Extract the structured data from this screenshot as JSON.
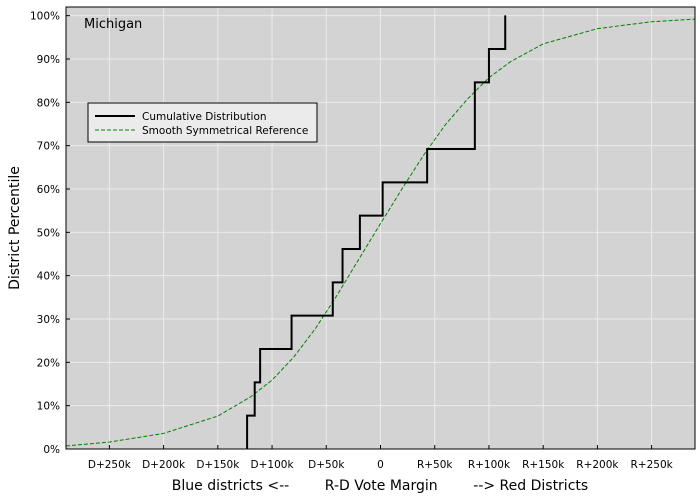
{
  "chart_data": {
    "type": "line",
    "title": "Michigan",
    "xlabel": "Blue districts <--        R-D Vote Margin        --> Red Districts",
    "ylabel": "District Percentile",
    "xlim": [
      -290000,
      290000
    ],
    "ylim": [
      0,
      1.02
    ],
    "grid": true,
    "legend_position": "upper-left",
    "x_ticks": [
      {
        "value": -250000,
        "label": "D+250k"
      },
      {
        "value": -200000,
        "label": "D+200k"
      },
      {
        "value": -150000,
        "label": "D+150k"
      },
      {
        "value": -100000,
        "label": "D+100k"
      },
      {
        "value": -50000,
        "label": "D+50k"
      },
      {
        "value": 0,
        "label": "0"
      },
      {
        "value": 50000,
        "label": "R+50k"
      },
      {
        "value": 100000,
        "label": "R+100k"
      },
      {
        "value": 150000,
        "label": "R+150k"
      },
      {
        "value": 200000,
        "label": "R+200k"
      },
      {
        "value": 250000,
        "label": "R+250k"
      }
    ],
    "y_ticks": [
      {
        "value": 0.0,
        "label": "0%"
      },
      {
        "value": 0.1,
        "label": "10%"
      },
      {
        "value": 0.2,
        "label": "20%"
      },
      {
        "value": 0.3,
        "label": "30%"
      },
      {
        "value": 0.4,
        "label": "40%"
      },
      {
        "value": 0.5,
        "label": "50%"
      },
      {
        "value": 0.6,
        "label": "60%"
      },
      {
        "value": 0.7,
        "label": "70%"
      },
      {
        "value": 0.8,
        "label": "80%"
      },
      {
        "value": 0.9,
        "label": "90%"
      },
      {
        "value": 1.0,
        "label": "100%"
      }
    ],
    "series": [
      {
        "name": "Cumulative Distribution",
        "style": "step",
        "color": "#000000",
        "x": [
          -123000,
          -116000,
          -111000,
          -82000,
          -44000,
          -35000,
          -19000,
          2000,
          43000,
          87000,
          100000,
          115000
        ],
        "y": [
          0.0769,
          0.1538,
          0.2308,
          0.3077,
          0.3846,
          0.4615,
          0.5385,
          0.6154,
          0.6923,
          0.8462,
          0.9231,
          1.0
        ]
      },
      {
        "name": "Smooth Symmetrical Reference",
        "style": "dashed",
        "color": "#008000",
        "x": [
          -290000,
          -250000,
          -200000,
          -150000,
          -120000,
          -100000,
          -80000,
          -60000,
          -40000,
          -20000,
          0,
          20000,
          40000,
          60000,
          80000,
          100000,
          120000,
          150000,
          200000,
          250000,
          290000
        ],
        "y": [
          0.007,
          0.016,
          0.036,
          0.076,
          0.12,
          0.159,
          0.212,
          0.278,
          0.355,
          0.438,
          0.52,
          0.601,
          0.679,
          0.749,
          0.807,
          0.857,
          0.894,
          0.935,
          0.97,
          0.986,
          0.992
        ]
      }
    ]
  },
  "colors": {
    "plot_background": "#d3d3d3",
    "grid": "#ebebeb",
    "legend_background": "#ebebeb"
  }
}
